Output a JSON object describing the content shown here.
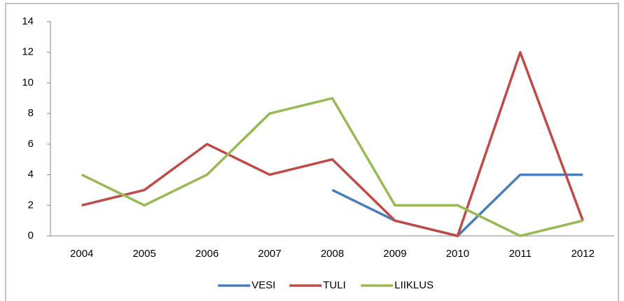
{
  "chart_data": {
    "type": "line",
    "categories": [
      "2004",
      "2005",
      "2006",
      "2007",
      "2008",
      "2009",
      "2010",
      "2011",
      "2012"
    ],
    "series": [
      {
        "name": "VESI",
        "color": "#4a7ebb",
        "values": [
          null,
          null,
          null,
          null,
          3,
          1,
          0,
          4,
          4
        ]
      },
      {
        "name": "TULI",
        "color": "#be4b48",
        "values": [
          2,
          3,
          6,
          4,
          5,
          1,
          0,
          12,
          1
        ]
      },
      {
        "name": "LIIKLUS",
        "color": "#98b954",
        "values": [
          4,
          2,
          4,
          8,
          9,
          2,
          2,
          0,
          1
        ]
      }
    ],
    "ylim": [
      0,
      14
    ],
    "yticks": [
      0,
      2,
      4,
      6,
      8,
      10,
      12,
      14
    ],
    "grid": false,
    "legend": "bottom"
  }
}
